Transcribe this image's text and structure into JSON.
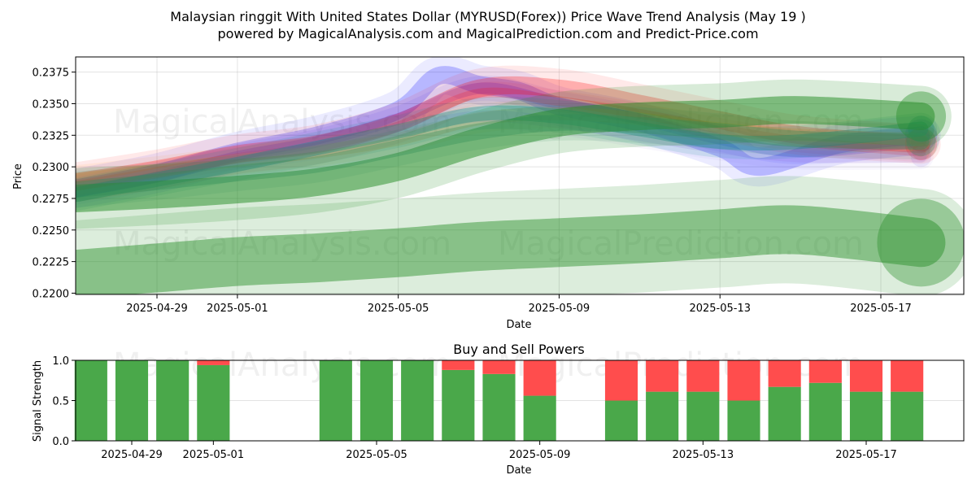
{
  "header": {
    "title_line1": "Malaysian ringgit With United States Dollar (MYRUSD(Forex)) Price Wave Trend Analysis (May 19 )",
    "title_line2": "powered by MagicalAnalysis.com and MagicalPrediction.com and Predict-Price.com"
  },
  "watermarks": [
    "MagicalAnalysis.com",
    "MagicalPrediction.com"
  ],
  "chart_data": [
    {
      "type": "line",
      "title": "",
      "xlabel": "Date",
      "ylabel": "Price",
      "x_range": [
        "2025-04-27",
        "2025-05-19"
      ],
      "ylim": [
        0.2199,
        0.2387
      ],
      "x_ticks": [
        "2025-04-29",
        "2025-05-01",
        "2025-05-05",
        "2025-05-09",
        "2025-05-13",
        "2025-05-17"
      ],
      "y_ticks": [
        0.22,
        0.2225,
        0.225,
        0.2275,
        0.23,
        0.2325,
        0.235,
        0.2375
      ],
      "grid": true,
      "series": [
        {
          "color": "#0000ff",
          "x": [
            "2025-04-27",
            "2025-04-29",
            "2025-05-01",
            "2025-05-03",
            "2025-05-05",
            "2025-05-06",
            "2025-05-07",
            "2025-05-08",
            "2025-05-09",
            "2025-05-11",
            "2025-05-13",
            "2025-05-14",
            "2025-05-16",
            "2025-05-18"
          ],
          "values": [
            0.2283,
            0.2295,
            0.2312,
            0.2325,
            0.2345,
            0.2372,
            0.2365,
            0.236,
            0.2348,
            0.2335,
            0.2315,
            0.23,
            0.2318,
            0.2325
          ]
        },
        {
          "color": "#0000ff",
          "x": [
            "2025-04-27",
            "2025-04-29",
            "2025-05-01",
            "2025-05-03",
            "2025-05-05",
            "2025-05-07",
            "2025-05-09",
            "2025-05-11",
            "2025-05-13",
            "2025-05-15",
            "2025-05-18"
          ],
          "values": [
            0.228,
            0.2292,
            0.2308,
            0.232,
            0.2338,
            0.2362,
            0.235,
            0.2338,
            0.2322,
            0.2312,
            0.232
          ]
        },
        {
          "color": "#ff0000",
          "x": [
            "2025-04-27",
            "2025-04-29",
            "2025-05-01",
            "2025-05-03",
            "2025-05-05",
            "2025-05-07",
            "2025-05-09",
            "2025-05-11",
            "2025-05-13",
            "2025-05-15",
            "2025-05-18"
          ],
          "values": [
            0.2288,
            0.2298,
            0.231,
            0.2318,
            0.2335,
            0.2362,
            0.2362,
            0.235,
            0.2337,
            0.2325,
            0.2318
          ]
        },
        {
          "color": "#ff0000",
          "x": [
            "2025-04-27",
            "2025-04-29",
            "2025-05-01",
            "2025-05-03",
            "2025-05-05",
            "2025-05-07",
            "2025-05-09",
            "2025-05-11",
            "2025-05-13",
            "2025-05-15",
            "2025-05-18"
          ],
          "values": [
            0.2285,
            0.2296,
            0.2307,
            0.2316,
            0.2332,
            0.2358,
            0.2352,
            0.2342,
            0.233,
            0.232,
            0.2312
          ]
        },
        {
          "color": "#ff8c00",
          "x": [
            "2025-04-27",
            "2025-04-29",
            "2025-05-01",
            "2025-05-03",
            "2025-05-05",
            "2025-05-07",
            "2025-05-09",
            "2025-05-11",
            "2025-05-13",
            "2025-05-15",
            "2025-05-18"
          ],
          "values": [
            0.229,
            0.2297,
            0.2305,
            0.2312,
            0.2322,
            0.2338,
            0.2342,
            0.2338,
            0.233,
            0.2325,
            0.2322
          ]
        },
        {
          "color": "#9370db",
          "x": [
            "2025-04-27",
            "2025-04-29",
            "2025-05-01",
            "2025-05-03",
            "2025-05-05",
            "2025-05-07",
            "2025-05-09",
            "2025-05-11",
            "2025-05-13",
            "2025-05-15",
            "2025-05-18"
          ],
          "values": [
            0.2282,
            0.2294,
            0.2306,
            0.2316,
            0.2328,
            0.234,
            0.2335,
            0.2325,
            0.2315,
            0.2308,
            0.2308
          ]
        },
        {
          "color": "#008b8b",
          "x": [
            "2025-04-27",
            "2025-04-29",
            "2025-05-01",
            "2025-05-03",
            "2025-05-05",
            "2025-05-07",
            "2025-05-09",
            "2025-05-11",
            "2025-05-13",
            "2025-05-15",
            "2025-05-18"
          ],
          "values": [
            0.2278,
            0.229,
            0.2302,
            0.2315,
            0.2328,
            0.2342,
            0.234,
            0.233,
            0.232,
            0.232,
            0.233
          ]
        },
        {
          "color": "#228b22",
          "x": [
            "2025-04-27",
            "2025-04-29",
            "2025-05-01",
            "2025-05-03",
            "2025-05-05",
            "2025-05-07",
            "2025-05-09",
            "2025-05-11",
            "2025-05-13",
            "2025-05-15",
            "2025-05-18"
          ],
          "values": [
            0.2275,
            0.2278,
            0.2282,
            0.2288,
            0.23,
            0.232,
            0.2335,
            0.234,
            0.2342,
            0.2345,
            0.234
          ]
        },
        {
          "color": "#2e8b57",
          "x": [
            "2025-04-27",
            "2025-04-29",
            "2025-05-01",
            "2025-05-03",
            "2025-05-05",
            "2025-05-07",
            "2025-05-09",
            "2025-05-11",
            "2025-05-13",
            "2025-05-15",
            "2025-05-18"
          ],
          "values": [
            0.2282,
            0.2288,
            0.2295,
            0.2302,
            0.2315,
            0.2328,
            0.2335,
            0.2333,
            0.2328,
            0.2322,
            0.232
          ]
        },
        {
          "color": "#228b22",
          "x": [
            "2025-04-27",
            "2025-04-29",
            "2025-05-01",
            "2025-05-03",
            "2025-05-05",
            "2025-05-07",
            "2025-05-09",
            "2025-05-11",
            "2025-05-13",
            "2025-05-15",
            "2025-05-18"
          ],
          "values": [
            0.2215,
            0.222,
            0.2225,
            0.2228,
            0.2232,
            0.2237,
            0.224,
            0.2243,
            0.2247,
            0.225,
            0.224
          ]
        }
      ]
    },
    {
      "type": "bar",
      "title": "Buy and Sell Powers",
      "xlabel": "Date",
      "ylabel": "Signal Strength",
      "ylim": [
        0,
        1
      ],
      "y_ticks": [
        0.0,
        0.5,
        1.0
      ],
      "x_ticks": [
        "2025-04-29",
        "2025-05-01",
        "2025-05-05",
        "2025-05-09",
        "2025-05-13",
        "2025-05-17"
      ],
      "colors": {
        "buy": "#4aa84a",
        "sell": "#ff4d4d"
      },
      "categories": [
        "2025-04-28",
        "2025-04-29",
        "2025-04-30",
        "2025-05-01",
        "2025-05-04",
        "2025-05-05",
        "2025-05-06",
        "2025-05-07",
        "2025-05-08",
        "2025-05-09",
        "2025-05-11",
        "2025-05-12",
        "2025-05-13",
        "2025-05-14",
        "2025-05-15",
        "2025-05-16",
        "2025-05-17",
        "2025-05-18"
      ],
      "series": [
        {
          "name": "buy",
          "values": [
            1.0,
            1.0,
            1.0,
            0.94,
            1.0,
            1.0,
            1.0,
            0.88,
            0.83,
            0.56,
            0.5,
            0.61,
            0.61,
            0.5,
            0.67,
            0.72,
            0.61,
            0.61
          ]
        },
        {
          "name": "sell",
          "values": [
            0.0,
            0.0,
            0.0,
            0.06,
            0.0,
            0.0,
            0.0,
            0.12,
            0.17,
            0.44,
            0.5,
            0.39,
            0.39,
            0.5,
            0.33,
            0.28,
            0.39,
            0.39
          ]
        }
      ]
    }
  ]
}
